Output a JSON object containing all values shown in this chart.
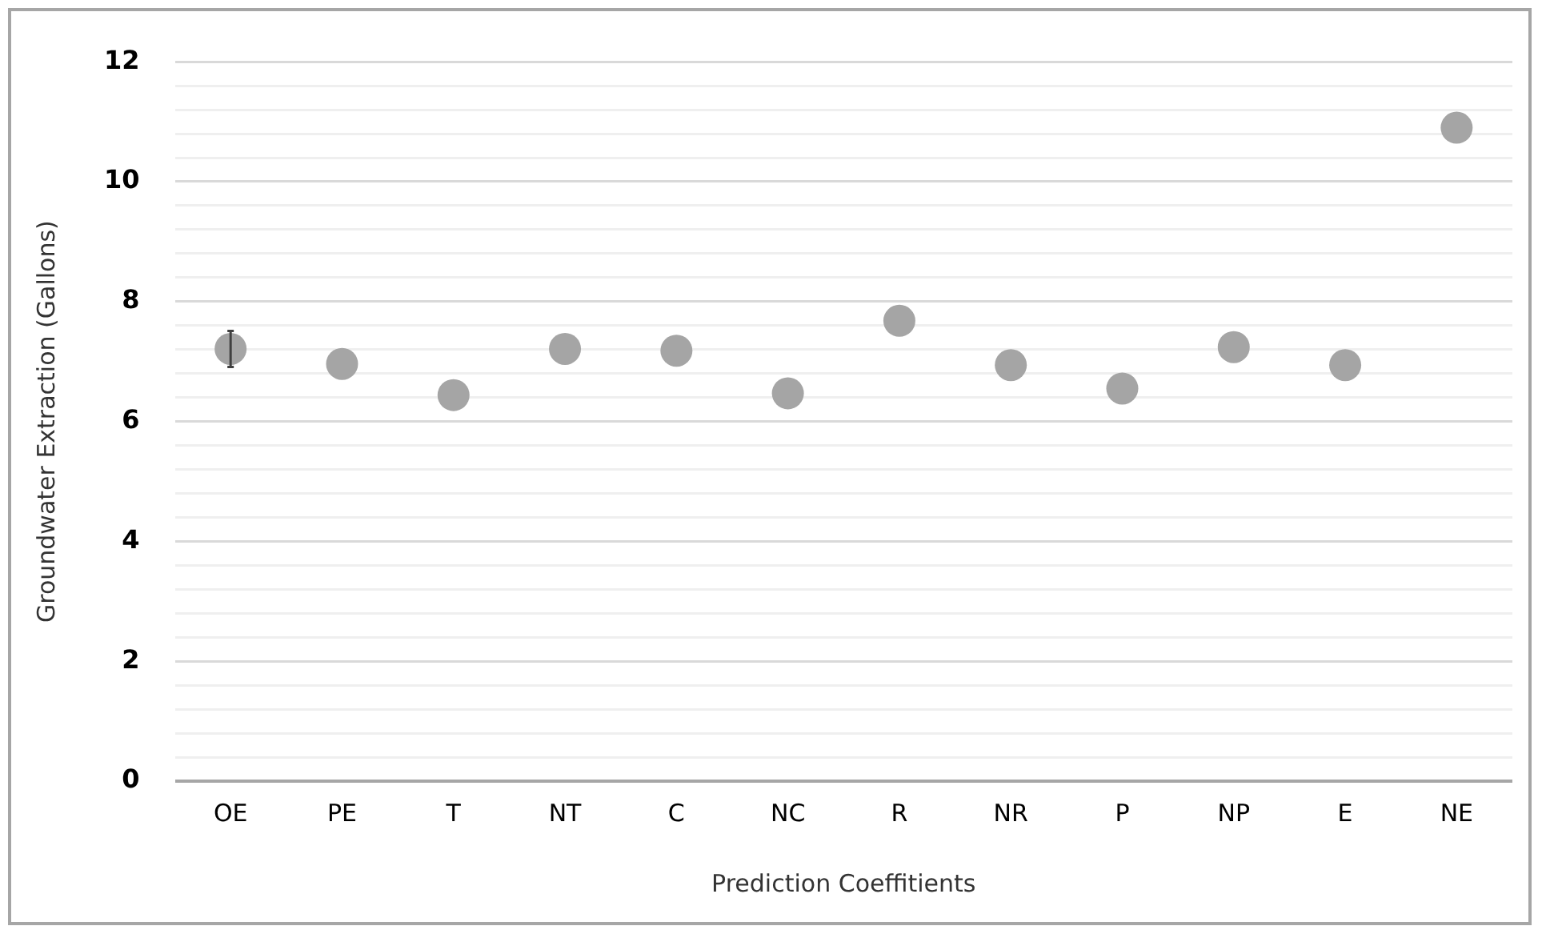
{
  "chart_data": {
    "type": "scatter",
    "xlabel": "Prediction Coeffitients",
    "ylabel": "Groundwater Extraction (Gallons)",
    "categories": [
      "OE",
      "PE",
      "T",
      "NT",
      "C",
      "NC",
      "R",
      "NR",
      "P",
      "NP",
      "E",
      "NE"
    ],
    "series": [
      {
        "color": "#a5a5a5",
        "values": [
          7.21,
          6.96,
          6.44,
          7.21,
          7.18,
          6.47,
          7.68,
          6.94,
          6.55,
          7.24,
          6.94,
          10.9
        ],
        "errors": [
          0.3,
          null,
          null,
          null,
          null,
          null,
          null,
          null,
          null,
          null,
          null,
          null
        ]
      }
    ],
    "ylim": [
      0,
      12
    ],
    "yticks": [
      0,
      {
        "value": 0.4,
        "label": null
      },
      {
        "value": 0.8,
        "label": null
      },
      {
        "value": 1.2,
        "label": null
      },
      {
        "value": 1.6,
        "label": null
      },
      2,
      {
        "value": 2.4,
        "label": null
      },
      {
        "value": 2.8,
        "label": null
      },
      {
        "value": 3.2,
        "label": null
      },
      {
        "value": 3.6,
        "label": null
      },
      4,
      {
        "value": 4.4,
        "label": null
      },
      {
        "value": 4.8,
        "label": null
      },
      {
        "value": 5.2,
        "label": null
      },
      {
        "value": 5.6,
        "label": null
      },
      6,
      {
        "value": 6.4,
        "label": null
      },
      {
        "value": 6.8,
        "label": null
      },
      {
        "value": 7.2,
        "label": null
      },
      {
        "value": 7.6,
        "label": null
      },
      8,
      {
        "value": 8.4,
        "label": null
      },
      {
        "value": 8.8,
        "label": null
      },
      {
        "value": 9.2,
        "label": null
      },
      {
        "value": 9.6,
        "label": null
      },
      10,
      {
        "value": 10.4,
        "label": null
      },
      {
        "value": 10.8,
        "label": null
      },
      {
        "value": 11.2,
        "label": null
      },
      {
        "value": 11.6,
        "label": null
      },
      12
    ],
    "grid": "y",
    "legend": false,
    "marker": "circle"
  }
}
